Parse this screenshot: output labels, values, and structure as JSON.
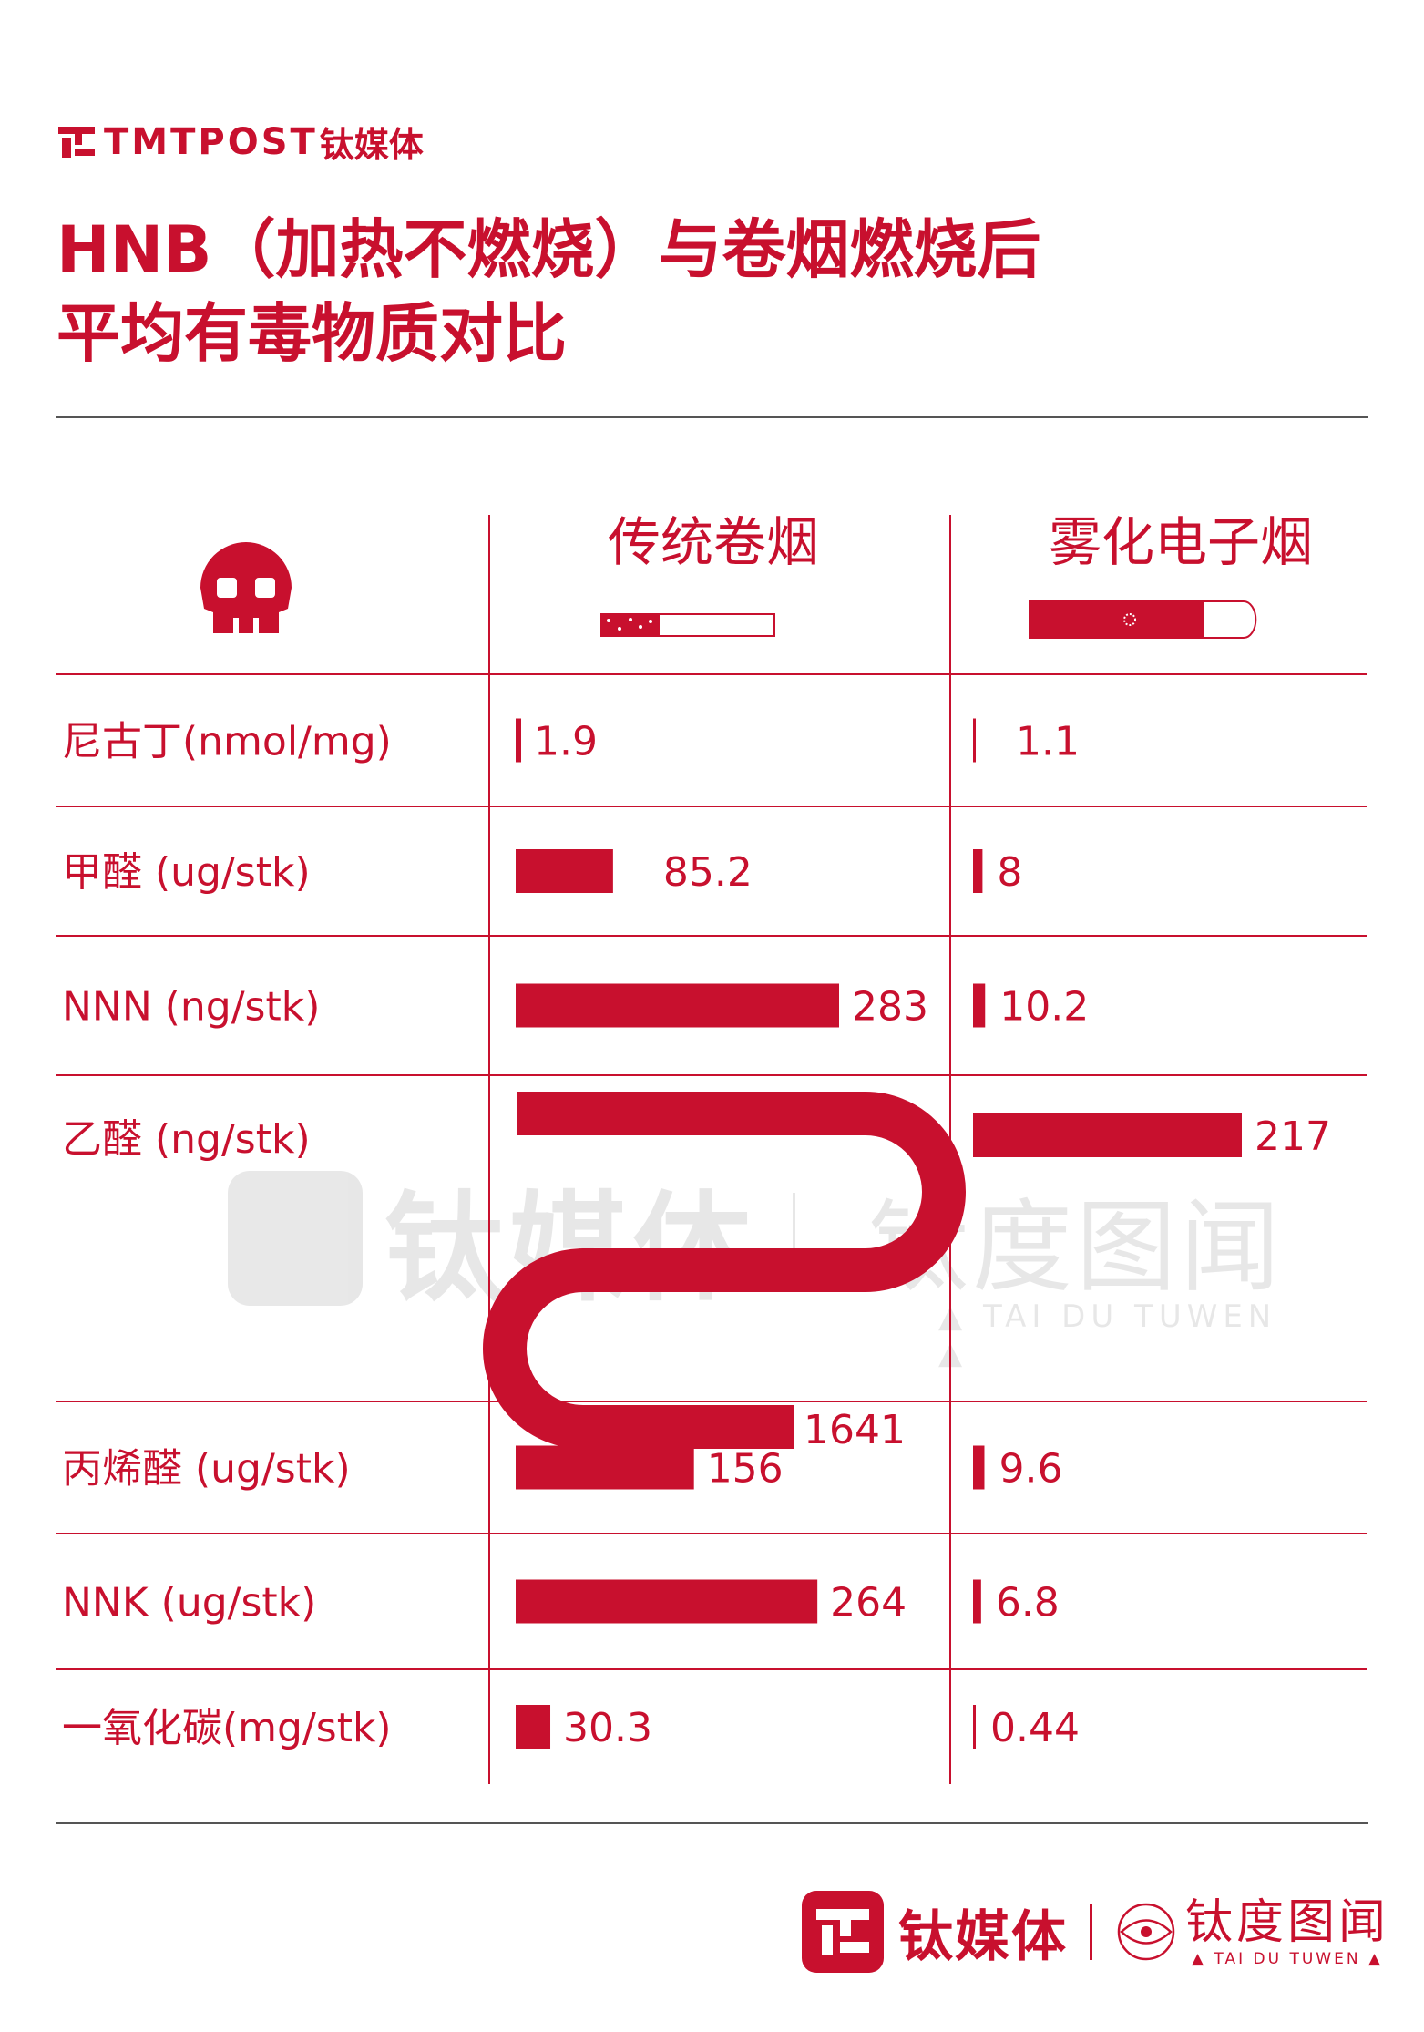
{
  "brand": {
    "wordmark": "TMTPOST",
    "cn": "钛媒体",
    "partner_cn": "钛度图闻",
    "partner_en": "▲ TAI DU TUWEN ▲"
  },
  "title": {
    "line1": "HNB（加热不燃烧）与卷烟燃烧后",
    "line2": "平均有毒物质对比"
  },
  "colors": {
    "accent": "#c8102e",
    "rule": "#555555"
  },
  "icons": {
    "header_left": "skull-icon",
    "col1": "cigarette-icon",
    "col2": "e-cigarette-icon"
  },
  "chart_data": {
    "type": "bar",
    "columns": [
      {
        "name": "传统卷烟"
      },
      {
        "name": "雾化电子烟"
      }
    ],
    "categories": [
      "尼古丁(nmol/mg)",
      "甲醛 (ug/stk)",
      "NNN (ng/stk)",
      "乙醛 (ng/stk)",
      "丙烯醛 (ug/stk)",
      "NNK (ug/stk)",
      "一氧化碳(mg/stk)"
    ],
    "series": [
      {
        "name": "传统卷烟",
        "values": [
          1.9,
          85.2,
          283,
          1641,
          156,
          264,
          30.3
        ],
        "labels": [
          "1.9",
          "85.2",
          "283",
          "1641",
          "156",
          "264",
          "30.3"
        ]
      },
      {
        "name": "雾化电子烟",
        "values": [
          1.1,
          8,
          10.2,
          217,
          9.6,
          6.8,
          0.44
        ],
        "labels": [
          "1.1",
          "8",
          "10.2",
          "217",
          "9.6",
          "6.8",
          "0.44"
        ]
      }
    ]
  }
}
